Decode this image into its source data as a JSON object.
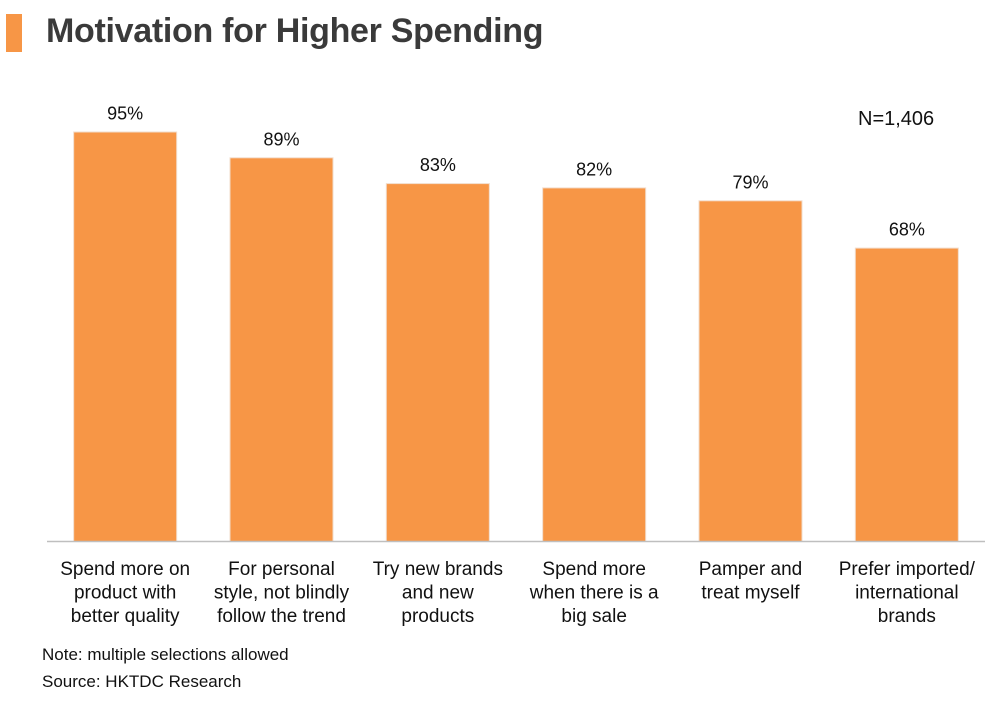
{
  "title": "Motivation for Higher Spending",
  "sample_size": "N=1,406",
  "chart_data": {
    "type": "bar",
    "categories": [
      [
        "Spend more on",
        "product with",
        "better quality"
      ],
      [
        "For personal",
        "style, not blindly",
        "follow the trend"
      ],
      [
        "Try new brands",
        "and new",
        "products"
      ],
      [
        "Spend more",
        "when there is a",
        "big sale"
      ],
      [
        "Pamper and",
        "treat myself"
      ],
      [
        "Prefer imported/",
        "international",
        "brands"
      ]
    ],
    "values": [
      95,
      89,
      83,
      82,
      79,
      68
    ],
    "value_labels": [
      "95%",
      "89%",
      "83%",
      "82%",
      "79%",
      "68%"
    ],
    "unit": "%",
    "ylim": [
      0,
      100
    ],
    "bar_color": "#f79646",
    "grid": false,
    "legend": "none"
  },
  "notes": {
    "note": "Note: multiple selections allowed",
    "source": "Source: HKTDC Research"
  }
}
